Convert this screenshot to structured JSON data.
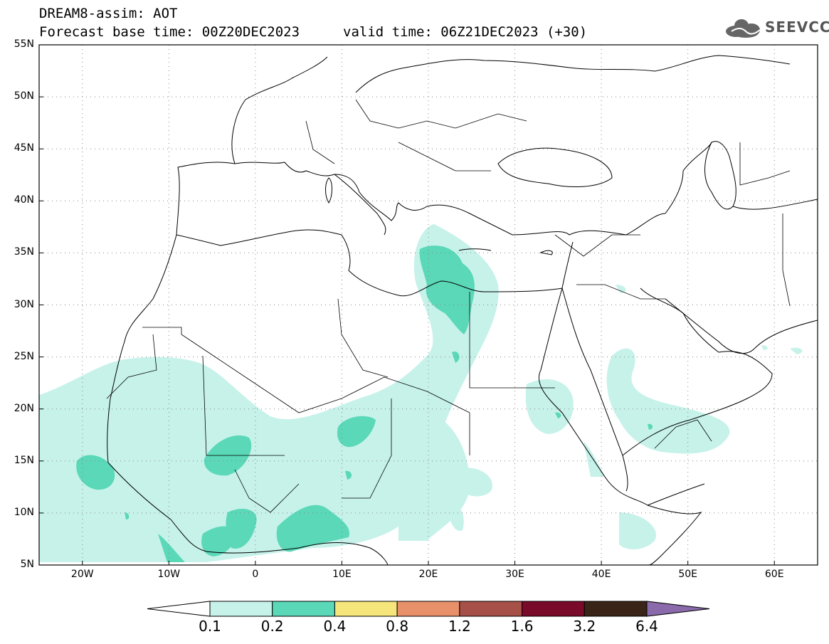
{
  "header": {
    "title_line1": "DREAM8-assim: AOT",
    "base_time": "Forecast base time: 00Z20DEC2023",
    "valid_time": "valid time: 06Z21DEC2023 (+30)",
    "logo_text": "SEEVCCC"
  },
  "map": {
    "projection": "lat-lon",
    "lon_range": [
      -25,
      65
    ],
    "lat_range": [
      5,
      55
    ],
    "lat_ticks": [
      "55N",
      "50N",
      "45N",
      "40N",
      "35N",
      "30N",
      "25N",
      "20N",
      "15N",
      "10N",
      "5N"
    ],
    "lat_tick_values": [
      55,
      50,
      45,
      40,
      35,
      30,
      25,
      20,
      15,
      10,
      5
    ],
    "lon_ticks": [
      "20W",
      "10W",
      "0",
      "10E",
      "20E",
      "30E",
      "40E",
      "50E",
      "60E"
    ],
    "lon_tick_values": [
      -20,
      -10,
      0,
      10,
      20,
      30,
      40,
      50,
      60
    ],
    "grid": "dotted"
  },
  "colorbar": {
    "labels": [
      "0.1",
      "0.2",
      "0.4",
      "0.8",
      "1.2",
      "1.6",
      "3.2",
      "6.4"
    ],
    "colors": [
      "#ffffff",
      "#c6f2ea",
      "#5ad8b8",
      "#f5e57a",
      "#e8906a",
      "#a65048",
      "#7a0a2a",
      "#3a2418",
      "#8a6aaa"
    ]
  },
  "colors": {
    "aot_low": "#c6f2ea",
    "aot_mid": "#5ad8b8",
    "coast": "#000000"
  }
}
